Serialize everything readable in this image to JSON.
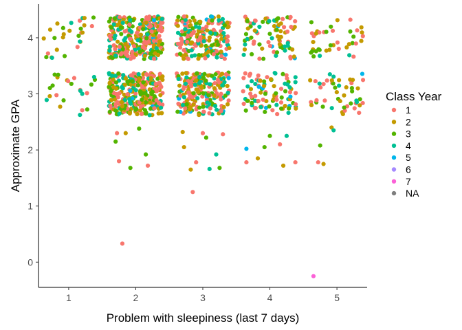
{
  "chart_data": {
    "type": "scatter",
    "jitter": true,
    "title": "",
    "xlabel": "Problem with sleepiness (last 7 days)",
    "ylabel": "Approximate GPA",
    "x_ticks": [
      1,
      2,
      3,
      4,
      5
    ],
    "y_ticks": [
      0,
      1,
      2,
      3,
      4
    ],
    "xlim": [
      0.55,
      5.45
    ],
    "ylim": [
      -0.45,
      4.6
    ],
    "grid": false,
    "legend": {
      "title": "Class Year",
      "position": "right",
      "entries": [
        {
          "label": "1",
          "color": "#F8766D"
        },
        {
          "label": "2",
          "color": "#C49A00"
        },
        {
          "label": "3",
          "color": "#53B400"
        },
        {
          "label": "4",
          "color": "#00C094"
        },
        {
          "label": "5",
          "color": "#00B6EB"
        },
        {
          "label": "6",
          "color": "#A58AFF"
        },
        {
          "label": "7",
          "color": "#FB61D7"
        },
        {
          "label": "NA",
          "color": "#7F7F7F"
        }
      ]
    },
    "points": [
      {
        "x": 1.8,
        "y": 0.33,
        "series": "1"
      },
      {
        "x": 2.85,
        "y": 1.25,
        "series": "1"
      },
      {
        "x": 4.65,
        "y": -0.25,
        "series": "7"
      },
      {
        "x": 3.65,
        "y": 2.02,
        "series": "5"
      },
      {
        "x": 1.7,
        "y": 2.15,
        "series": "3"
      },
      {
        "x": 1.75,
        "y": 1.8,
        "series": "1"
      },
      {
        "x": 1.92,
        "y": 1.68,
        "series": "3"
      },
      {
        "x": 2.05,
        "y": 2.38,
        "series": "3"
      },
      {
        "x": 2.15,
        "y": 1.92,
        "series": "3"
      },
      {
        "x": 1.85,
        "y": 2.3,
        "series": "2"
      },
      {
        "x": 2.18,
        "y": 1.72,
        "series": "1"
      },
      {
        "x": 1.72,
        "y": 2.3,
        "series": "1"
      },
      {
        "x": 2.7,
        "y": 2.32,
        "series": "2"
      },
      {
        "x": 2.72,
        "y": 2.05,
        "series": "2"
      },
      {
        "x": 2.9,
        "y": 1.78,
        "series": "1"
      },
      {
        "x": 3.05,
        "y": 2.22,
        "series": "3"
      },
      {
        "x": 3.2,
        "y": 1.92,
        "series": "4"
      },
      {
        "x": 3.3,
        "y": 2.28,
        "series": "1"
      },
      {
        "x": 3.1,
        "y": 1.66,
        "series": "4"
      },
      {
        "x": 2.82,
        "y": 1.65,
        "series": "2"
      },
      {
        "x": 3.25,
        "y": 1.68,
        "series": "3"
      },
      {
        "x": 3.0,
        "y": 2.3,
        "series": "1"
      },
      {
        "x": 3.65,
        "y": 1.78,
        "series": "1"
      },
      {
        "x": 3.82,
        "y": 1.85,
        "series": "2"
      },
      {
        "x": 4.0,
        "y": 2.25,
        "series": "3"
      },
      {
        "x": 4.15,
        "y": 2.1,
        "series": "1"
      },
      {
        "x": 4.25,
        "y": 2.25,
        "series": "4"
      },
      {
        "x": 4.2,
        "y": 1.72,
        "series": "2"
      },
      {
        "x": 4.38,
        "y": 1.78,
        "series": "1"
      },
      {
        "x": 3.92,
        "y": 2.05,
        "series": "3"
      },
      {
        "x": 4.8,
        "y": 1.75,
        "series": "2"
      },
      {
        "x": 4.72,
        "y": 1.78,
        "series": "1"
      },
      {
        "x": 4.92,
        "y": 2.4,
        "series": "2"
      },
      {
        "x": 4.95,
        "y": 2.35,
        "series": "4"
      },
      {
        "x": 4.75,
        "y": 2.08,
        "series": "3"
      }
    ],
    "clusters": [
      {
        "x_center": 1,
        "x_spread": 0.42,
        "y_min": 3.62,
        "y_max": 4.38,
        "count": 28
      },
      {
        "x_center": 1,
        "x_spread": 0.42,
        "y_min": 2.62,
        "y_max": 3.38,
        "count": 24
      },
      {
        "x_center": 2,
        "x_spread": 0.4,
        "y_min": 3.62,
        "y_max": 4.38,
        "count": 300
      },
      {
        "x_center": 2,
        "x_spread": 0.4,
        "y_min": 2.62,
        "y_max": 3.38,
        "count": 300
      },
      {
        "x_center": 3,
        "x_spread": 0.4,
        "y_min": 3.62,
        "y_max": 4.38,
        "count": 210
      },
      {
        "x_center": 3,
        "x_spread": 0.4,
        "y_min": 2.62,
        "y_max": 3.38,
        "count": 220
      },
      {
        "x_center": 4,
        "x_spread": 0.4,
        "y_min": 3.62,
        "y_max": 4.38,
        "count": 85
      },
      {
        "x_center": 4,
        "x_spread": 0.4,
        "y_min": 2.62,
        "y_max": 3.38,
        "count": 95
      },
      {
        "x_center": 5,
        "x_spread": 0.4,
        "y_min": 3.62,
        "y_max": 4.38,
        "count": 40
      },
      {
        "x_center": 5,
        "x_spread": 0.4,
        "y_min": 2.62,
        "y_max": 3.38,
        "count": 48
      }
    ],
    "cluster_series_weights": [
      {
        "series": "1",
        "weight": 0.32
      },
      {
        "series": "2",
        "weight": 0.26
      },
      {
        "series": "3",
        "weight": 0.22
      },
      {
        "series": "4",
        "weight": 0.18
      },
      {
        "series": "5",
        "weight": 0.02
      }
    ]
  }
}
